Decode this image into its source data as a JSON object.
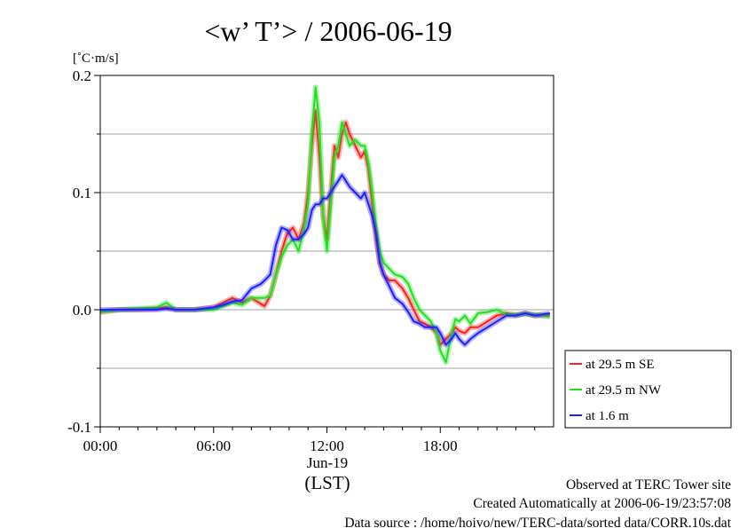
{
  "chart_data": {
    "type": "line",
    "title": "<w’ T’> / 2006-06-19",
    "ylabel": "[˚C·m/s]",
    "xlabel": "",
    "x_unit_label": "(LST)",
    "x_date_label": "Jun-19",
    "xlim": [
      0,
      24
    ],
    "ylim": [
      -0.1,
      0.2
    ],
    "x_ticks": [
      {
        "value": 0,
        "label": "00:00"
      },
      {
        "value": 6,
        "label": "06:00"
      },
      {
        "value": 12,
        "label": "12:00"
      },
      {
        "value": 18,
        "label": "18:00"
      }
    ],
    "y_ticks": [
      {
        "value": -0.1,
        "label": "-0.1"
      },
      {
        "value": 0.0,
        "label": "0.0"
      },
      {
        "value": 0.1,
        "label": "0.1"
      },
      {
        "value": 0.2,
        "label": "0.2"
      }
    ],
    "grid": true,
    "legend_position": "bottom-right-outside",
    "series": [
      {
        "name": "at 29.5 m SE",
        "color": "#ff2020",
        "x": [
          0,
          1,
          2,
          3,
          3.5,
          4,
          5,
          6,
          6.5,
          7,
          7.5,
          8,
          8.5,
          8.7,
          9,
          9.3,
          9.6,
          9.9,
          10.2,
          10.5,
          10.8,
          11,
          11.2,
          11.4,
          11.6,
          11.8,
          12,
          12.2,
          12.4,
          12.6,
          12.8,
          13,
          13.2,
          13.5,
          13.8,
          14,
          14.2,
          14.4,
          14.6,
          14.8,
          15,
          15.3,
          15.6,
          16,
          16.3,
          16.6,
          16.9,
          17.2,
          17.5,
          17.8,
          18,
          18.3,
          18.6,
          18.8,
          19,
          19.3,
          19.6,
          20,
          20.5,
          21,
          21.5,
          22,
          22.5,
          23,
          23.8
        ],
        "values": [
          -0.002,
          0,
          0,
          0.001,
          0.002,
          0,
          0,
          0.002,
          0.006,
          0.01,
          0.006,
          0.01,
          0.005,
          0.003,
          0.012,
          0.03,
          0.05,
          0.065,
          0.07,
          0.06,
          0.075,
          0.1,
          0.14,
          0.17,
          0.13,
          0.08,
          0.06,
          0.1,
          0.14,
          0.13,
          0.15,
          0.16,
          0.15,
          0.14,
          0.13,
          0.135,
          0.12,
          0.09,
          0.06,
          0.04,
          0.03,
          0.025,
          0.025,
          0.018,
          0.01,
          0,
          -0.01,
          -0.012,
          -0.015,
          -0.02,
          -0.03,
          -0.025,
          -0.02,
          -0.015,
          -0.018,
          -0.02,
          -0.015,
          -0.015,
          -0.01,
          -0.005,
          -0.003,
          -0.005,
          -0.003,
          -0.005,
          -0.005
        ]
      },
      {
        "name": "at 29.5 m NW",
        "color": "#20e020",
        "x": [
          0,
          1,
          2,
          3,
          3.5,
          4,
          5,
          6,
          6.5,
          7,
          7.5,
          8,
          8.5,
          8.7,
          9,
          9.3,
          9.6,
          9.9,
          10.2,
          10.5,
          10.8,
          11,
          11.2,
          11.4,
          11.6,
          11.8,
          12,
          12.2,
          12.4,
          12.6,
          12.8,
          13,
          13.2,
          13.5,
          13.8,
          14,
          14.2,
          14.4,
          14.6,
          14.8,
          15,
          15.3,
          15.6,
          16,
          16.3,
          16.6,
          16.9,
          17.2,
          17.5,
          17.8,
          18,
          18.3,
          18.6,
          18.8,
          19,
          19.3,
          19.6,
          20,
          20.5,
          21,
          21.5,
          22,
          22.5,
          23,
          23.8
        ],
        "values": [
          -0.002,
          0,
          0.001,
          0.002,
          0.006,
          0,
          0,
          0,
          0.003,
          0.006,
          0.004,
          0.01,
          0.01,
          0.01,
          0.012,
          0.03,
          0.045,
          0.055,
          0.06,
          0.05,
          0.07,
          0.09,
          0.15,
          0.19,
          0.16,
          0.08,
          0.05,
          0.09,
          0.13,
          0.14,
          0.16,
          0.15,
          0.14,
          0.145,
          0.14,
          0.14,
          0.125,
          0.1,
          0.07,
          0.05,
          0.04,
          0.035,
          0.03,
          0.028,
          0.022,
          0.01,
          0,
          -0.005,
          -0.01,
          -0.02,
          -0.035,
          -0.045,
          -0.02,
          -0.008,
          -0.01,
          -0.005,
          -0.012,
          -0.003,
          -0.002,
          0,
          -0.004,
          -0.004,
          -0.004,
          -0.004,
          -0.006
        ]
      },
      {
        "name": "at 1.6 m",
        "color": "#2020ff",
        "x": [
          0,
          1,
          2,
          3,
          3.5,
          4,
          5,
          6,
          6.5,
          7,
          7.5,
          8,
          8.5,
          8.7,
          9,
          9.3,
          9.6,
          9.9,
          10.2,
          10.5,
          10.8,
          11,
          11.2,
          11.4,
          11.6,
          11.8,
          12,
          12.2,
          12.4,
          12.6,
          12.8,
          13,
          13.2,
          13.5,
          13.8,
          14,
          14.2,
          14.4,
          14.6,
          14.8,
          15,
          15.3,
          15.6,
          16,
          16.3,
          16.6,
          16.9,
          17.2,
          17.5,
          17.8,
          18,
          18.3,
          18.6,
          18.8,
          19,
          19.3,
          19.6,
          20,
          20.5,
          21,
          21.5,
          22,
          22.5,
          23,
          23.8
        ],
        "values": [
          0,
          0,
          0,
          0,
          0.001,
          0,
          0,
          0.002,
          0.004,
          0.007,
          0.008,
          0.018,
          0.022,
          0.025,
          0.03,
          0.055,
          0.07,
          0.068,
          0.06,
          0.06,
          0.065,
          0.07,
          0.085,
          0.09,
          0.09,
          0.095,
          0.095,
          0.1,
          0.105,
          0.11,
          0.115,
          0.11,
          0.105,
          0.1,
          0.095,
          0.1,
          0.09,
          0.08,
          0.065,
          0.04,
          0.03,
          0.02,
          0.01,
          0.005,
          -0.002,
          -0.01,
          -0.012,
          -0.015,
          -0.015,
          -0.015,
          -0.02,
          -0.03,
          -0.025,
          -0.02,
          -0.025,
          -0.03,
          -0.025,
          -0.02,
          -0.015,
          -0.01,
          -0.005,
          -0.005,
          -0.003,
          -0.005,
          -0.003
        ]
      }
    ]
  },
  "footer": {
    "line1": "Observed at TERC Tower site",
    "line2": "Created Automatically at 2006-06-19/23:57:08",
    "line3": "Data source : /home/hoivo/new/TERC-data/sorted  data/CORR.10s.dat"
  }
}
